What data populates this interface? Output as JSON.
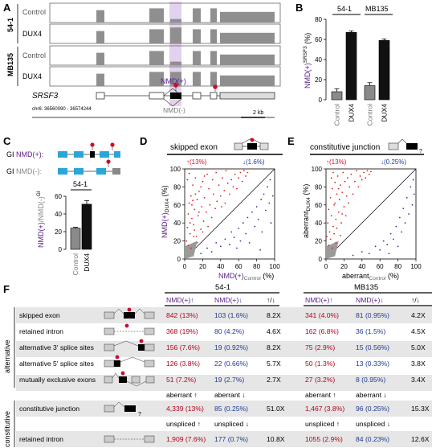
{
  "panels": {
    "A": {
      "letter": "A",
      "row_labels": [
        "Control",
        "DUX4",
        "Control",
        "DUX4"
      ],
      "cell_lines": [
        "54-1",
        "MB135"
      ],
      "gene": "SRSF3",
      "coords": "chr6: 36560090 - 36574244",
      "scale_label": "2 kb",
      "nmd_plus": "NMD(+)",
      "nmd_minus": "NMD(-)"
    },
    "B": {
      "letter": "B",
      "ylabel_main": "NMD(+)",
      "ylabel_sup": "SRSF3",
      "ylabel_unit": "(%)",
      "ticks": [
        "0",
        "20",
        "40",
        "60",
        "80"
      ],
      "groups": [
        "54-1",
        "MB135"
      ],
      "xlabels": [
        "Control",
        "DUX4",
        "Control",
        "DUX4"
      ]
    },
    "C": {
      "letter": "C",
      "gi_plus_prefix": "GI",
      "gi_plus": "NMD(+):",
      "gi_minus_prefix": "GI",
      "gi_minus": "NMD(-):",
      "group": "54-1",
      "ylabel_a": "NMD(+)",
      "ylabel_b": "/NMD(-)",
      "ylabel_sup": "GI",
      "ticks": [
        "0",
        "20",
        "40",
        "60"
      ],
      "xlabels": [
        "Control",
        "DUX4"
      ]
    },
    "D": {
      "letter": "D",
      "title": "skipped exon",
      "up_label": "↑(13%)",
      "down_label": "↓(1.6%)",
      "ylabel": "NMD(+)",
      "ylabel_sub": "DUX4",
      "ylabel_unit": "(%)",
      "xlabel": "NMD(+)",
      "xlabel_sub": "Control",
      "xlabel_unit": "(%)",
      "ticks": [
        "0",
        "20",
        "40",
        "60",
        "80",
        "100"
      ]
    },
    "E": {
      "letter": "E",
      "title": "constitutive junction",
      "up_label": "↑(13%)",
      "down_label": "↓(0.25%)",
      "ylabel": "aberrant",
      "ylabel_sub": "DUX4",
      "ylabel_unit": "(%)",
      "xlabel": "aberrant",
      "xlabel_sub": "Control",
      "xlabel_unit": "(%)",
      "ticks": [
        "0",
        "20",
        "40",
        "60",
        "80",
        "100"
      ]
    },
    "F": {
      "letter": "F",
      "lines": [
        "54-1",
        "MB135"
      ],
      "col_heads": [
        "NMD(+)↑",
        "NMD(+)↓",
        "↑/↓",
        "NMD(+)↑",
        "NMD(+)↓",
        "↑/↓"
      ],
      "side_alt": "alternative",
      "side_const": "constitutive",
      "rows": [
        {
          "name": "skipped exon",
          "v": [
            "842 (13%)",
            "103 (1.6%)",
            "8.2X",
            "341 (4.0%)",
            "81 (0.95%)",
            "4.2X"
          ]
        },
        {
          "name": "retained intron",
          "v": [
            "368 (19%)",
            "80 (4.2%)",
            "4.6X",
            "162 (6.8%)",
            "36 (1.5%)",
            "4.5X"
          ]
        },
        {
          "name": "alternative 3' splice sites",
          "v": [
            "156 (7.6%)",
            "19 (0.92%)",
            "8.2X",
            "75 (2.9%)",
            "15 (0.56%)",
            "5.0X"
          ]
        },
        {
          "name": "alternative 5' splice sites",
          "v": [
            "126 (3.8%)",
            "22 (0.66%)",
            "5.7X",
            "50 (1.3%)",
            "13 (0.33%)",
            "3.8X"
          ]
        },
        {
          "name": "mutually exclusive exons",
          "v": [
            "51 (7.2%)",
            "19 (2.7%)",
            "2.7X",
            "27 (3.2%)",
            "8 (0.95%)",
            "3.4X"
          ]
        }
      ],
      "aberrant_heads": [
        "aberrant ↑",
        "aberrant ↓",
        "aberrant ↑",
        "aberrant ↓"
      ],
      "const_row": {
        "name": "constitutive junction",
        "v": [
          "4,339 (13%)",
          "85 (0.25%)",
          "51.0X",
          "1,467 (3.8%)",
          "96 (0.25%)",
          "15.3X"
        ]
      },
      "unspliced_heads": [
        "unspliced ↑",
        "unspliced ↓",
        "unspliced ↑",
        "unspliced ↓"
      ],
      "ri_row": {
        "name": "retained intron",
        "v": [
          "1,909 (7.6%)",
          "177 (0.7%)",
          "10.8X",
          "1055 (2.9%)",
          "84 (0.23%)",
          "12.6X"
        ]
      }
    }
  },
  "chart_data": [
    {
      "panel": "B",
      "type": "bar",
      "categories": [
        "Control",
        "DUX4",
        "Control",
        "DUX4"
      ],
      "groups": [
        "54-1",
        "54-1",
        "MB135",
        "MB135"
      ],
      "values": [
        8,
        67,
        14,
        59
      ],
      "errors": [
        3,
        1.5,
        3,
        1.5
      ],
      "colors": [
        "#8a8a8a",
        "#111111",
        "#8a8a8a",
        "#111111"
      ],
      "ylim": [
        0,
        80
      ]
    },
    {
      "panel": "C",
      "type": "bar",
      "categories": [
        "Control",
        "DUX4"
      ],
      "values": [
        24,
        51
      ],
      "errors": [
        1,
        4
      ],
      "colors": [
        "#8a8a8a",
        "#111111"
      ],
      "ylim": [
        0,
        60
      ]
    },
    {
      "panel": "D",
      "type": "scatter",
      "xlim": [
        0,
        100
      ],
      "ylim": [
        0,
        100
      ],
      "series": [
        {
          "color": "#d8231f",
          "points": [
            [
              2,
              20
            ],
            [
              3,
              35
            ],
            [
              4,
              50
            ],
            [
              5,
              62
            ],
            [
              6,
              28
            ],
            [
              7,
              70
            ],
            [
              8,
              45
            ],
            [
              9,
              82
            ],
            [
              10,
              38
            ],
            [
              11,
              55
            ],
            [
              12,
              90
            ],
            [
              13,
              25
            ],
            [
              14,
              66
            ],
            [
              15,
              48
            ],
            [
              16,
              75
            ],
            [
              18,
              33
            ],
            [
              19,
              58
            ],
            [
              20,
              86
            ],
            [
              21,
              42
            ],
            [
              22,
              68
            ],
            [
              24,
              52
            ],
            [
              25,
              94
            ],
            [
              26,
              36
            ],
            [
              27,
              78
            ],
            [
              28,
              60
            ],
            [
              30,
              46
            ],
            [
              31,
              88
            ],
            [
              32,
              72
            ],
            [
              34,
              56
            ],
            [
              35,
              96
            ],
            [
              36,
              64
            ],
            [
              38,
              82
            ],
            [
              40,
              70
            ],
            [
              41,
              58
            ],
            [
              42,
              90
            ],
            [
              44,
              76
            ],
            [
              45,
              62
            ],
            [
              46,
              98
            ],
            [
              48,
              84
            ],
            [
              50,
              72
            ],
            [
              52,
              88
            ],
            [
              54,
              80
            ],
            [
              56,
              94
            ],
            [
              58,
              78
            ],
            [
              60,
              90
            ],
            [
              62,
              96
            ],
            [
              64,
              86
            ],
            [
              66,
              98
            ],
            [
              68,
              92
            ],
            [
              70,
              96
            ],
            [
              4,
              15
            ],
            [
              6,
              40
            ],
            [
              8,
              60
            ],
            [
              10,
              25
            ],
            [
              12,
              72
            ],
            [
              14,
              18
            ],
            [
              16,
              52
            ],
            [
              18,
              80
            ],
            [
              20,
              30
            ],
            [
              22,
              92
            ],
            [
              3,
              88
            ],
            [
              5,
              95
            ],
            [
              7,
              12
            ],
            [
              9,
              65
            ],
            [
              11,
              32
            ]
          ]
        },
        {
          "color": "#2a3aa0",
          "points": [
            [
              18,
              6
            ],
            [
              25,
              12
            ],
            [
              30,
              8
            ],
            [
              35,
              18
            ],
            [
              40,
              14
            ],
            [
              45,
              22
            ],
            [
              50,
              16
            ],
            [
              52,
              30
            ],
            [
              55,
              24
            ],
            [
              58,
              12
            ],
            [
              60,
              34
            ],
            [
              62,
              20
            ],
            [
              65,
              40
            ],
            [
              68,
              28
            ],
            [
              70,
              46
            ],
            [
              72,
              18
            ],
            [
              75,
              52
            ],
            [
              78,
              36
            ],
            [
              80,
              58
            ],
            [
              82,
              44
            ],
            [
              85,
              66
            ],
            [
              86,
              30
            ],
            [
              88,
              72
            ],
            [
              90,
              54
            ],
            [
              92,
              80
            ],
            [
              94,
              62
            ],
            [
              95,
              88
            ],
            [
              96,
              40
            ],
            [
              98,
              70
            ],
            [
              84,
              10
            ]
          ]
        }
      ]
    },
    {
      "panel": "E",
      "type": "scatter",
      "xlim": [
        0,
        100
      ],
      "ylim": [
        0,
        100
      ],
      "series": [
        {
          "color": "#d8231f",
          "points": [
            [
              1,
              25
            ],
            [
              2,
              40
            ],
            [
              3,
              55
            ],
            [
              4,
              30
            ],
            [
              5,
              68
            ],
            [
              6,
              48
            ],
            [
              7,
              78
            ],
            [
              8,
              36
            ],
            [
              9,
              60
            ],
            [
              10,
              85
            ],
            [
              11,
              44
            ],
            [
              12,
              72
            ],
            [
              13,
              92
            ],
            [
              14,
              52
            ],
            [
              15,
              66
            ],
            [
              16,
              82
            ],
            [
              17,
              40
            ],
            [
              18,
              74
            ],
            [
              19,
              96
            ],
            [
              20,
              58
            ],
            [
              21,
              86
            ],
            [
              22,
              48
            ],
            [
              23,
              70
            ],
            [
              24,
              90
            ],
            [
              25,
              62
            ],
            [
              26,
              80
            ],
            [
              28,
              94
            ],
            [
              30,
              72
            ],
            [
              32,
              86
            ],
            [
              34,
              98
            ],
            [
              36,
              80
            ],
            [
              38,
              92
            ],
            [
              40,
              88
            ],
            [
              42,
              96
            ],
            [
              44,
              90
            ],
            [
              46,
              98
            ],
            [
              48,
              94
            ],
            [
              50,
              97
            ],
            [
              3,
              15
            ],
            [
              5,
              22
            ],
            [
              7,
              12
            ],
            [
              9,
              28
            ],
            [
              11,
              18
            ],
            [
              6,
              90
            ],
            [
              8,
              96
            ],
            [
              10,
              62
            ],
            [
              12,
              34
            ],
            [
              14,
              78
            ],
            [
              16,
              26
            ],
            [
              18,
              50
            ]
          ]
        },
        {
          "color": "#2a3aa0",
          "points": [
            [
              30,
              4
            ],
            [
              40,
              8
            ],
            [
              48,
              6
            ],
            [
              55,
              14
            ],
            [
              60,
              10
            ],
            [
              64,
              20
            ],
            [
              68,
              16
            ],
            [
              72,
              28
            ],
            [
              75,
              22
            ],
            [
              78,
              36
            ],
            [
              80,
              14
            ],
            [
              82,
              46
            ],
            [
              84,
              30
            ],
            [
              86,
              56
            ],
            [
              88,
              40
            ],
            [
              90,
              68
            ],
            [
              92,
              50
            ],
            [
              94,
              80
            ],
            [
              96,
              60
            ],
            [
              97,
              88
            ],
            [
              98,
              72
            ],
            [
              70,
              6
            ]
          ]
        }
      ]
    }
  ]
}
